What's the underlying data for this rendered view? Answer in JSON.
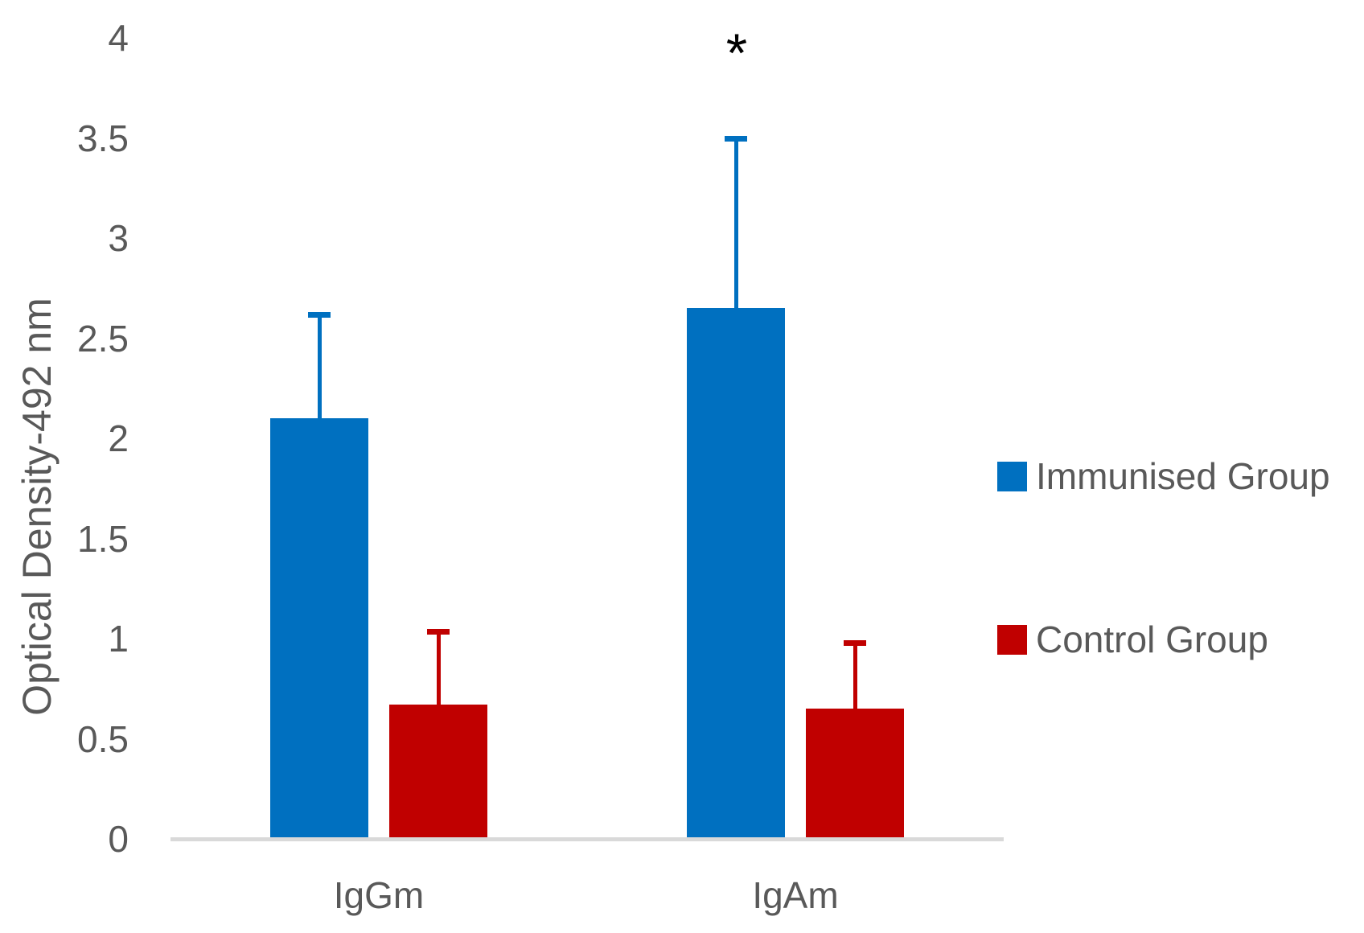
{
  "chart_data": {
    "type": "bar",
    "title": "",
    "xlabel": "",
    "ylabel": "Optical Density-492 nm",
    "categories": [
      "IgGm",
      "IgAm"
    ],
    "series": [
      {
        "name": "Immunised Group",
        "color": "#0070C0",
        "values": [
          2.1,
          2.65
        ],
        "error_plus": [
          0.53,
          0.86
        ]
      },
      {
        "name": "Control Group",
        "color": "#C00000",
        "values": [
          0.67,
          0.65
        ],
        "error_plus": [
          0.38,
          0.34
        ]
      }
    ],
    "ylim": [
      0,
      4
    ],
    "ytick_step": 0.5,
    "yticklabels": [
      "0",
      "0.5",
      "1",
      "1.5",
      "2",
      "2.5",
      "3",
      "3.5",
      "4"
    ],
    "grid": false,
    "legend_position": "right",
    "error_bars": "upper-only, same color as series",
    "annotations": [
      {
        "text": "*",
        "category_index": 1,
        "series_index": 0,
        "meaning": "significance marker above IgAm Immunised error bar"
      }
    ]
  },
  "colors": {
    "background": "#FFFFFF",
    "text": "#595959",
    "axis_line": "#D9D9D9",
    "annotation": "#000000",
    "immunised": "#0070C0",
    "control": "#C00000"
  }
}
